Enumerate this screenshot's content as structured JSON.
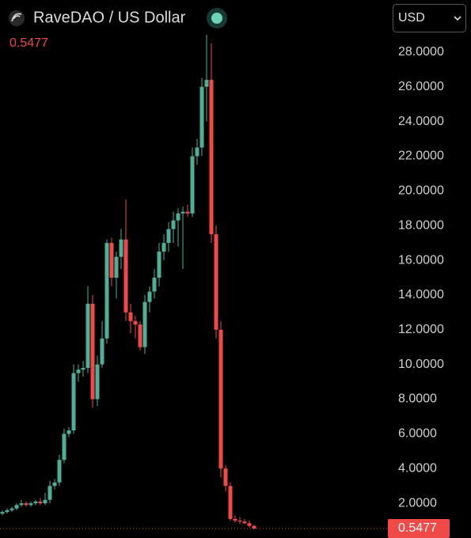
{
  "chart_data": {
    "type": "candlestick",
    "title": "RaveDAO / US Dollar",
    "currency": "USD",
    "last_price_label": "0.5477",
    "last_price": 0.5477,
    "up_color": "#4fae97",
    "down_color": "#ef4a48",
    "categories": [
      null,
      null,
      null,
      null,
      null,
      null,
      null,
      null,
      null,
      null,
      null,
      null,
      null,
      null,
      null,
      null,
      null,
      null,
      null,
      null,
      null,
      null,
      null,
      null,
      null,
      null,
      null,
      null,
      null,
      null,
      null,
      null,
      null,
      null,
      null,
      null,
      null,
      null,
      null,
      null,
      null,
      null,
      null,
      null,
      null,
      null,
      null,
      null,
      null,
      null,
      null,
      null,
      null,
      null
    ],
    "open": [
      1.4,
      1.5,
      1.6,
      1.7,
      1.9,
      2.0,
      1.9,
      2.0,
      2.1,
      2.0,
      2.2,
      3.0,
      3.2,
      4.5,
      6.0,
      6.2,
      9.5,
      9.7,
      9.8,
      13.5,
      8.0,
      10.0,
      11.5,
      17.0,
      15.0,
      16.2,
      17.2,
      13.0,
      12.5,
      12.3,
      11.0,
      13.6,
      14.2,
      15.0,
      16.5,
      17.0,
      17.8,
      18.3,
      18.7,
      18.8,
      18.7,
      22.0,
      22.5,
      26.0,
      26.4,
      17.5,
      12.0,
      4.0,
      3.0,
      1.1,
      1.0,
      0.95,
      0.85,
      0.7
    ],
    "high": [
      1.6,
      1.7,
      1.8,
      2.0,
      2.2,
      2.1,
      2.1,
      2.2,
      2.3,
      2.6,
      3.3,
      3.4,
      4.8,
      6.3,
      6.4,
      10.0,
      10.0,
      10.2,
      14.5,
      14.0,
      10.5,
      12.5,
      17.2,
      17.3,
      16.5,
      17.8,
      19.5,
      13.5,
      12.8,
      12.5,
      14.0,
      14.5,
      15.5,
      17.0,
      17.5,
      18.2,
      18.8,
      19.0,
      19.1,
      19.2,
      22.5,
      23.0,
      26.5,
      29.0,
      28.5,
      18.0,
      12.5,
      4.2,
      3.2,
      1.3,
      1.2,
      1.1,
      1.0,
      0.75
    ],
    "low": [
      1.3,
      1.4,
      1.5,
      1.6,
      1.8,
      1.8,
      1.8,
      1.9,
      1.9,
      1.9,
      2.0,
      2.8,
      3.0,
      4.3,
      5.8,
      6.0,
      9.0,
      9.3,
      9.5,
      7.5,
      7.6,
      9.8,
      11.2,
      14.5,
      13.8,
      15.5,
      12.5,
      11.8,
      11.5,
      10.8,
      10.6,
      13.0,
      13.8,
      14.5,
      16.0,
      16.5,
      17.0,
      16.8,
      15.5,
      18.5,
      18.5,
      21.5,
      22.0,
      24.0,
      17.0,
      11.5,
      3.5,
      2.7,
      1.0,
      0.9,
      0.8,
      0.8,
      0.6,
      0.5
    ],
    "close": [
      1.5,
      1.6,
      1.7,
      1.9,
      2.0,
      1.9,
      2.0,
      2.1,
      2.0,
      2.2,
      3.0,
      3.2,
      4.5,
      6.0,
      6.2,
      9.5,
      9.7,
      9.8,
      13.5,
      8.0,
      10.0,
      11.5,
      17.0,
      15.0,
      16.2,
      17.2,
      13.0,
      12.5,
      12.3,
      11.0,
      13.6,
      14.2,
      15.0,
      16.5,
      17.0,
      17.8,
      18.3,
      18.7,
      18.8,
      18.7,
      22.0,
      22.5,
      26.0,
      26.4,
      17.5,
      12.0,
      4.0,
      3.0,
      1.1,
      1.0,
      0.95,
      0.85,
      0.7,
      0.5477
    ],
    "ylim": [
      0,
      31.0
    ],
    "yticks": [
      {
        "value": 2,
        "label": "2.0000"
      },
      {
        "value": 4,
        "label": "4.0000"
      },
      {
        "value": 6,
        "label": "6.0000"
      },
      {
        "value": 8,
        "label": "8.0000"
      },
      {
        "value": 10,
        "label": "10.0000"
      },
      {
        "value": 12,
        "label": "12.0000"
      },
      {
        "value": 14,
        "label": "14.0000"
      },
      {
        "value": 16,
        "label": "16.0000"
      },
      {
        "value": 18,
        "label": "18.0000"
      },
      {
        "value": 20,
        "label": "20.0000"
      },
      {
        "value": 22,
        "label": "22.0000"
      },
      {
        "value": 24,
        "label": "24.0000"
      },
      {
        "value": 26,
        "label": "26.0000"
      },
      {
        "value": 28,
        "label": "28.0000"
      }
    ],
    "grid": false
  }
}
